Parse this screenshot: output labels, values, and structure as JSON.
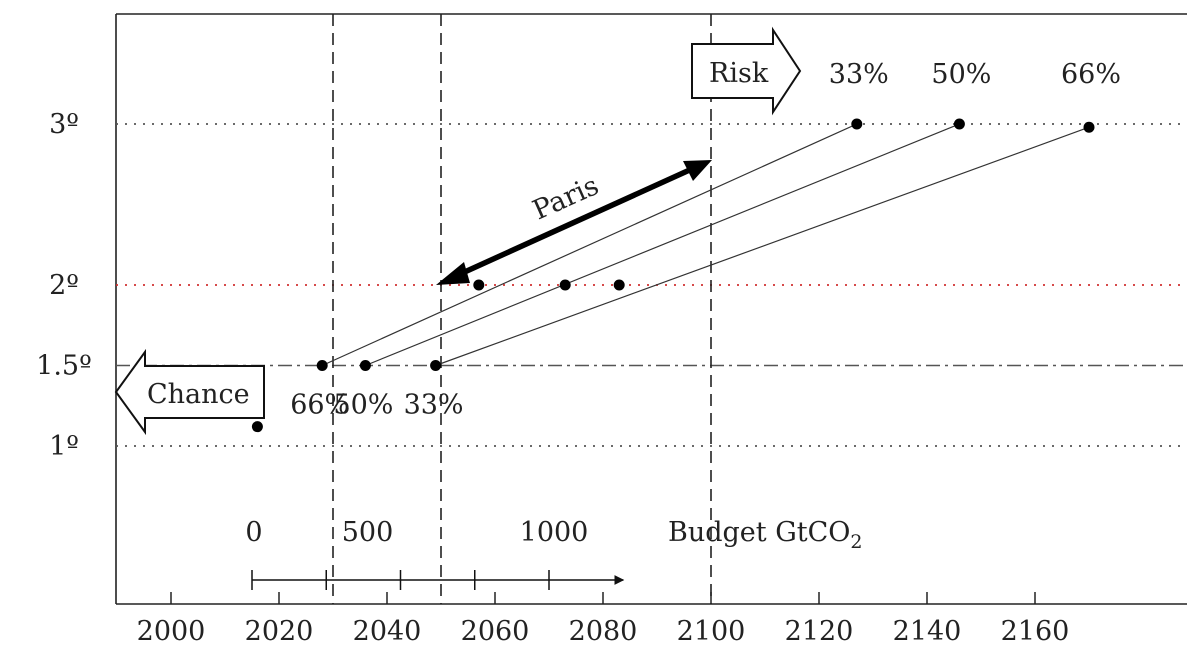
{
  "chart_data": {
    "type": "scatter",
    "title": "",
    "xlabel": "",
    "ylabel": "",
    "x_ticks": [
      2000,
      2020,
      2040,
      2060,
      2080,
      2100,
      2120,
      2140,
      2160
    ],
    "y_levels": [
      {
        "label": "3º",
        "value": 3,
        "color": "#555555",
        "style": "dotted"
      },
      {
        "label": "2º",
        "value": 2,
        "color": "#d03030",
        "style": "dotted"
      },
      {
        "label": "1.5º",
        "value": 1.5,
        "color": "#555555",
        "style": "dashdot"
      },
      {
        "label": "1º",
        "value": 1,
        "color": "#555555",
        "style": "dotted"
      }
    ],
    "vertical_markers": [
      2030,
      2050,
      2100
    ],
    "current_point": {
      "x": 2016,
      "y": 1.12
    },
    "series": [
      {
        "points": [
          {
            "x": 2028,
            "y": 1.5
          },
          {
            "x": 2057,
            "y": 2.0
          },
          {
            "x": 2127,
            "y": 3.0
          }
        ]
      },
      {
        "points": [
          {
            "x": 2036,
            "y": 1.5
          },
          {
            "x": 2073,
            "y": 2.0
          },
          {
            "x": 2146,
            "y": 3.0
          }
        ]
      },
      {
        "points": [
          {
            "x": 2049,
            "y": 1.5
          },
          {
            "x": 2083,
            "y": 2.0
          },
          {
            "x": 2170,
            "y": 2.98
          }
        ]
      }
    ],
    "low_labels": [
      "66%",
      "50%",
      "33%"
    ],
    "high_labels": [
      "33%",
      "50%",
      "66%"
    ],
    "arrows": {
      "risk": "Risk",
      "chance": "Chance",
      "paris": "Paris"
    },
    "budget": {
      "label_main": "Budget GtCO",
      "label_sub": "2",
      "ticks": [
        {
          "value": 0,
          "label": "0"
        },
        {
          "value": 500,
          "label": "500"
        },
        {
          "value": 1000,
          "label": "1000"
        }
      ],
      "minor_ticks": [
        250,
        750
      ],
      "start_year": 2015,
      "end_value": 1250
    }
  }
}
